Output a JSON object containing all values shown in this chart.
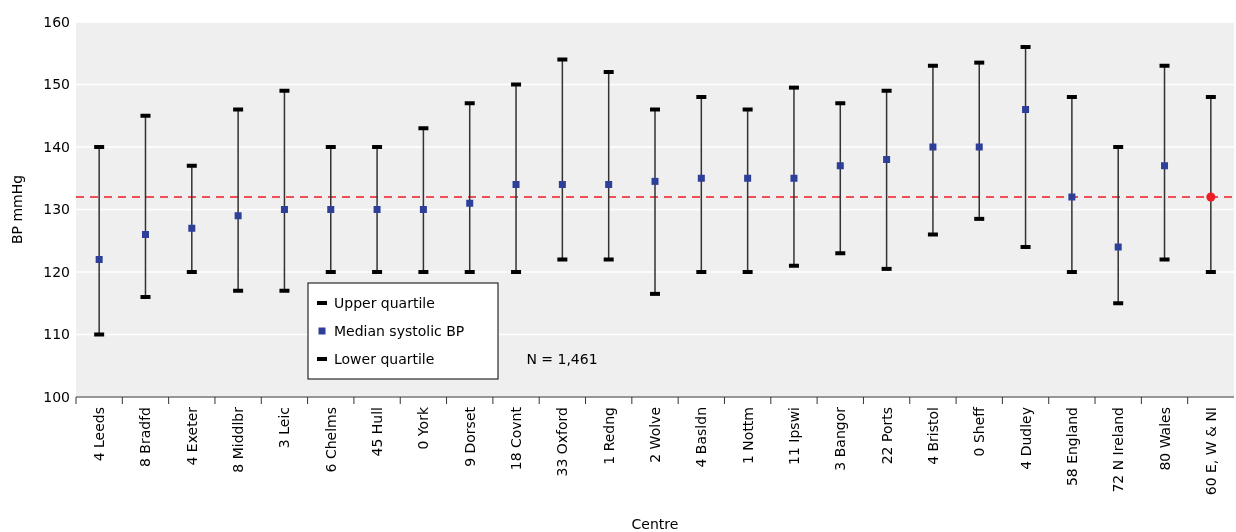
{
  "chart_data": {
    "type": "scatter",
    "xlabel": "Centre",
    "ylabel": "BP mmHg",
    "categories": [
      "4 Leeds",
      "8 Bradfd",
      "4 Exeter",
      "8 Middlbr",
      "3 Leic",
      "6 Chelms",
      "45 Hull",
      "0 York",
      "9 Dorset",
      "18 Covnt",
      "33 Oxford",
      "1 Redng",
      "2 Wolve",
      "4 Basldn",
      "1 Nottm",
      "11 Ipswi",
      "3 Bangor",
      "22 Ports",
      "4 Bristol",
      "0 Sheff",
      "4 Dudley",
      "58 England",
      "72 N Ireland",
      "80 Wales",
      "60 E, W & NI"
    ],
    "series": [
      {
        "type": "bar",
        "color": "#333333",
        "base": [
          110,
          116,
          120,
          117,
          117,
          120,
          120,
          120,
          120,
          120,
          122,
          122,
          116.5,
          120,
          120,
          121,
          123,
          120.5,
          126,
          128.5,
          124,
          120,
          115,
          122,
          120
        ],
        "values": [
          30,
          29,
          17,
          29,
          32,
          20,
          20,
          23,
          27,
          30,
          32,
          30,
          29.5,
          28,
          26,
          28.5,
          24,
          28.5,
          27,
          25,
          32,
          28,
          25,
          31,
          28
        ]
      },
      {
        "name": "Upper quartile",
        "color": "#000000",
        "values": [
          140,
          145,
          137,
          146,
          149,
          140,
          140,
          143,
          147,
          150,
          154,
          152,
          146,
          148,
          146,
          149.5,
          147,
          149,
          153,
          153.5,
          156,
          148,
          140,
          153,
          148
        ]
      },
      {
        "name": "Median systolic BP",
        "color": "#2e3f9a",
        "marker": "square",
        "colors": [
          "#2e3f9a",
          "#2e3f9a",
          "#2e3f9a",
          "#2e3f9a",
          "#2e3f9a",
          "#2e3f9a",
          "#2e3f9a",
          "#2e3f9a",
          "#2e3f9a",
          "#2e3f9a",
          "#2e3f9a",
          "#2e3f9a",
          "#2e3f9a",
          "#2e3f9a",
          "#2e3f9a",
          "#2e3f9a",
          "#2e3f9a",
          "#2e3f9a",
          "#2e3f9a",
          "#2e3f9a",
          "#2e3f9a",
          "#2e3f9a",
          "#2e3f9a",
          "#2e3f9a",
          "#ee1c25"
        ],
        "values": [
          122,
          126,
          127,
          129,
          130,
          130,
          130,
          130,
          131,
          134,
          134,
          134,
          134.5,
          135,
          135,
          135,
          137,
          138,
          140,
          140,
          146,
          132,
          124,
          137,
          132
        ]
      },
      {
        "name": "Lower quartile",
        "color": "#000000",
        "values": [
          110,
          116,
          120,
          117,
          117,
          120,
          120,
          120,
          120,
          120,
          122,
          122,
          116.5,
          120,
          120,
          121,
          123,
          120.5,
          126,
          128.5,
          124,
          120,
          115,
          122,
          120
        ]
      }
    ],
    "ylim": [
      100,
      160
    ],
    "yticks": [
      100,
      110,
      120,
      130,
      140,
      150,
      160
    ],
    "grid": "y",
    "legend": "bottom left",
    "ref_lines": [
      {
        "axis": "y",
        "value": 132,
        "color": "#ee1c25",
        "line_style": "dashed"
      }
    ],
    "annotations": [
      "N = 1,461"
    ]
  }
}
